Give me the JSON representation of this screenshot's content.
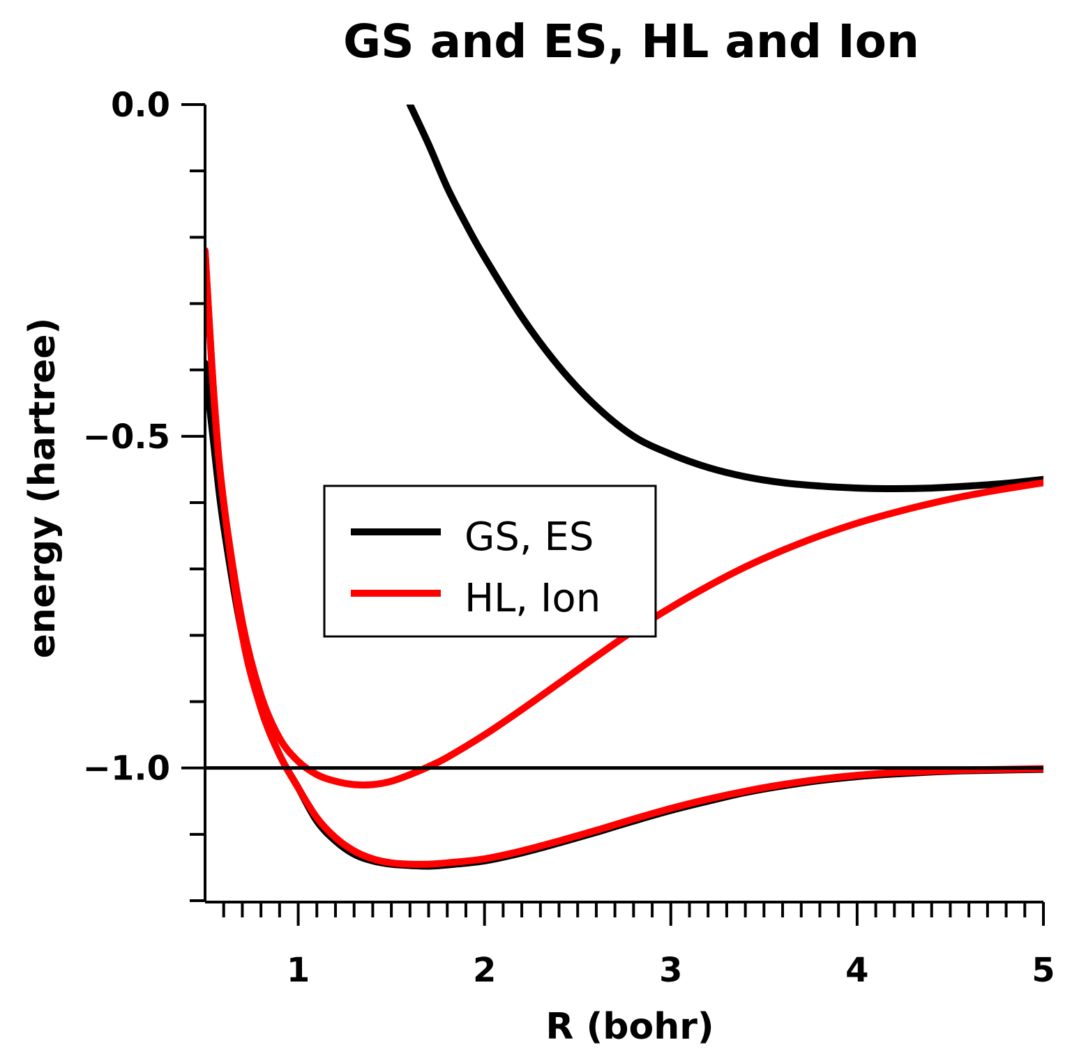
{
  "chart_data": {
    "type": "line",
    "title": "GS and ES, HL and Ion",
    "xlabel": "R (bohr)",
    "ylabel": "energy (hartree)",
    "xlim": [
      0.5,
      5.0
    ],
    "ylim": [
      -1.2,
      0.0
    ],
    "x_major_ticks": [
      1,
      2,
      3,
      4,
      5
    ],
    "x_tick_labels": [
      "1",
      "2",
      "3",
      "4",
      "5"
    ],
    "x_minor_step": 0.2,
    "y_major_ticks": [
      0.0,
      -0.5,
      -1.0
    ],
    "y_tick_labels": [
      "0.0",
      "−0.5",
      "−1.0"
    ],
    "y_minor_step": 0.1,
    "reference_line": {
      "y": -1.0,
      "color": "#000000"
    },
    "legend": {
      "position": "center-left",
      "entries": [
        {
          "label": "GS, ES",
          "color": "#000000"
        },
        {
          "label": "HL, Ion",
          "color": "#ff0000"
        }
      ]
    },
    "series": [
      {
        "name": "GS",
        "color": "#000000",
        "x": [
          0.5,
          0.55,
          0.6,
          0.7,
          0.8,
          0.9,
          1.0,
          1.1,
          1.2,
          1.3,
          1.4,
          1.5,
          1.6,
          1.7,
          1.8,
          2.0,
          2.2,
          2.4,
          2.6,
          2.8,
          3.0,
          3.2,
          3.4,
          3.6,
          3.8,
          4.0,
          4.2,
          4.4,
          4.6,
          4.8,
          5.0
        ],
        "y": [
          -0.39,
          -0.52,
          -0.635,
          -0.8,
          -0.91,
          -0.98,
          -1.03,
          -1.08,
          -1.11,
          -1.13,
          -1.14,
          -1.145,
          -1.147,
          -1.148,
          -1.146,
          -1.14,
          -1.128,
          -1.113,
          -1.097,
          -1.08,
          -1.064,
          -1.05,
          -1.037,
          -1.027,
          -1.019,
          -1.013,
          -1.009,
          -1.006,
          -1.004,
          -1.003,
          -1.002
        ]
      },
      {
        "name": "ES",
        "color": "#000000",
        "x": [
          1.6,
          1.7,
          1.8,
          1.9,
          2.0,
          2.2,
          2.4,
          2.6,
          2.8,
          3.0,
          3.2,
          3.4,
          3.6,
          3.8,
          4.0,
          4.2,
          4.4,
          4.6,
          4.8,
          5.0
        ],
        "y": [
          0.0,
          -0.06,
          -0.125,
          -0.18,
          -0.23,
          -0.32,
          -0.395,
          -0.455,
          -0.5,
          -0.527,
          -0.547,
          -0.561,
          -0.57,
          -0.575,
          -0.578,
          -0.579,
          -0.578,
          -0.575,
          -0.571,
          -0.565
        ]
      },
      {
        "name": "HL",
        "color": "#ff0000",
        "x": [
          0.5,
          0.55,
          0.6,
          0.7,
          0.8,
          0.9,
          1.0,
          1.1,
          1.2,
          1.3,
          1.4,
          1.5,
          1.6,
          1.7,
          1.8,
          2.0,
          2.2,
          2.4,
          2.6,
          2.8,
          3.0,
          3.2,
          3.4,
          3.6,
          3.8,
          4.0,
          4.2,
          4.4,
          4.6,
          4.8,
          5.0
        ],
        "y": [
          -0.22,
          -0.45,
          -0.6,
          -0.8,
          -0.91,
          -0.98,
          -1.03,
          -1.075,
          -1.105,
          -1.125,
          -1.137,
          -1.143,
          -1.145,
          -1.145,
          -1.143,
          -1.137,
          -1.125,
          -1.11,
          -1.094,
          -1.077,
          -1.061,
          -1.047,
          -1.035,
          -1.025,
          -1.017,
          -1.011,
          -1.007,
          -1.005,
          -1.003,
          -1.002,
          -1.001
        ]
      },
      {
        "name": "Ion",
        "color": "#ff0000",
        "x": [
          0.5,
          0.55,
          0.6,
          0.7,
          0.8,
          0.9,
          1.0,
          1.1,
          1.2,
          1.3,
          1.4,
          1.5,
          1.6,
          1.7,
          1.8,
          2.0,
          2.2,
          2.4,
          2.6,
          2.8,
          3.0,
          3.2,
          3.4,
          3.6,
          3.8,
          4.0,
          4.2,
          4.4,
          4.6,
          4.8,
          5.0
        ],
        "y": [
          -0.22,
          -0.45,
          -0.6,
          -0.78,
          -0.89,
          -0.955,
          -0.99,
          -1.01,
          -1.02,
          -1.025,
          -1.025,
          -1.02,
          -1.01,
          -0.998,
          -0.984,
          -0.95,
          -0.912,
          -0.872,
          -0.832,
          -0.793,
          -0.758,
          -0.726,
          -0.697,
          -0.672,
          -0.65,
          -0.631,
          -0.615,
          -0.601,
          -0.589,
          -0.579,
          -0.57
        ]
      }
    ]
  }
}
